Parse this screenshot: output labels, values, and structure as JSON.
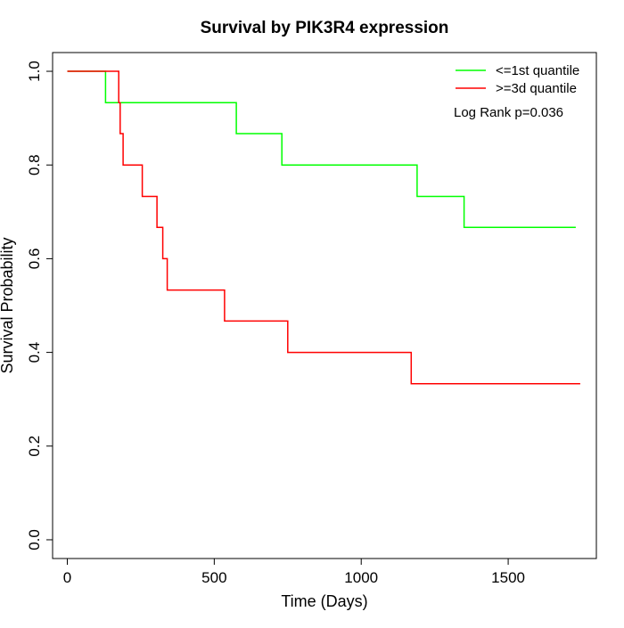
{
  "chart_data": {
    "type": "line",
    "subtype": "step",
    "title": "Survival by PIK3R4 expression",
    "xlabel": "Time (Days)",
    "ylabel": "Survival Probability",
    "xlim": [
      -50,
      1800
    ],
    "ylim": [
      -0.04,
      1.04
    ],
    "x_ticks": [
      0,
      500,
      1000,
      1500
    ],
    "y_ticks": [
      0.0,
      0.2,
      0.4,
      0.6,
      0.8,
      1.0
    ],
    "x_tick_labels": [
      "0",
      "500",
      "1000",
      "1500"
    ],
    "y_tick_labels": [
      "0.0",
      "0.2",
      "0.4",
      "0.6",
      "0.8",
      "1.0"
    ],
    "grid": false,
    "legend_position": "top-right",
    "annotation": "Log Rank p=0.036",
    "series": [
      {
        "name": "<=1st quantile",
        "color": "#00ff00",
        "x": [
          0,
          130,
          130,
          575,
          575,
          730,
          730,
          1190,
          1190,
          1350,
          1350,
          1730
        ],
        "y": [
          1.0,
          1.0,
          0.933,
          0.933,
          0.867,
          0.867,
          0.8,
          0.8,
          0.733,
          0.733,
          0.667,
          0.667
        ]
      },
      {
        "name": ">=3d quantile",
        "color": "#ff0000",
        "x": [
          0,
          175,
          175,
          180,
          180,
          190,
          190,
          255,
          255,
          305,
          305,
          325,
          325,
          340,
          340,
          535,
          535,
          750,
          750,
          1170,
          1170,
          1745
        ],
        "y": [
          1.0,
          1.0,
          0.933,
          0.933,
          0.867,
          0.867,
          0.8,
          0.8,
          0.733,
          0.733,
          0.667,
          0.667,
          0.6,
          0.6,
          0.533,
          0.533,
          0.467,
          0.467,
          0.4,
          0.4,
          0.333,
          0.333
        ]
      }
    ]
  }
}
